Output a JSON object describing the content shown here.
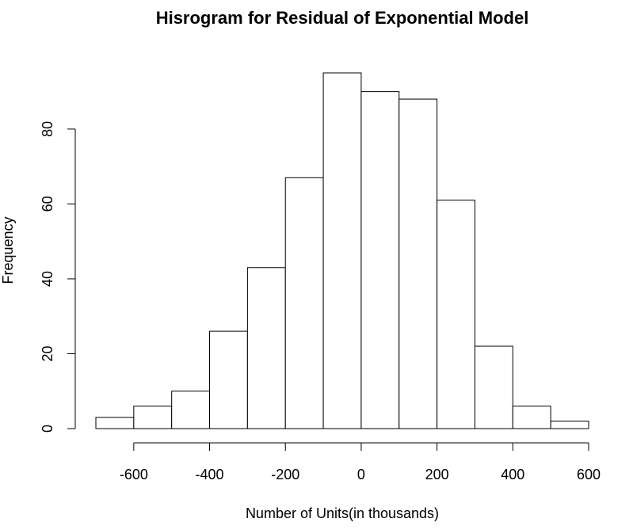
{
  "chart_data": {
    "type": "bar",
    "title": "Hisrogram for Residual of Exponential Model",
    "xlabel": "Number of Units(in thousands)",
    "ylabel": "Frequency",
    "bin_edges": [
      -700,
      -600,
      -500,
      -400,
      -300,
      -200,
      -100,
      0,
      100,
      200,
      300,
      400,
      500,
      600
    ],
    "values": [
      3,
      6,
      10,
      26,
      43,
      67,
      95,
      90,
      88,
      61,
      22,
      6,
      2
    ],
    "x_ticks": [
      -600,
      -400,
      -200,
      0,
      200,
      400,
      600
    ],
    "x_tick_labels": [
      "-600",
      "-400",
      "-200",
      "0",
      "200",
      "400",
      "600"
    ],
    "y_ticks": [
      0,
      20,
      40,
      60,
      80
    ],
    "y_tick_labels": [
      "0",
      "20",
      "40",
      "60",
      "80"
    ],
    "xlim": [
      -700,
      600
    ],
    "ylim": [
      0,
      95
    ],
    "grid": false,
    "bar_fill": "#ffffff",
    "bar_stroke": "#000000"
  }
}
